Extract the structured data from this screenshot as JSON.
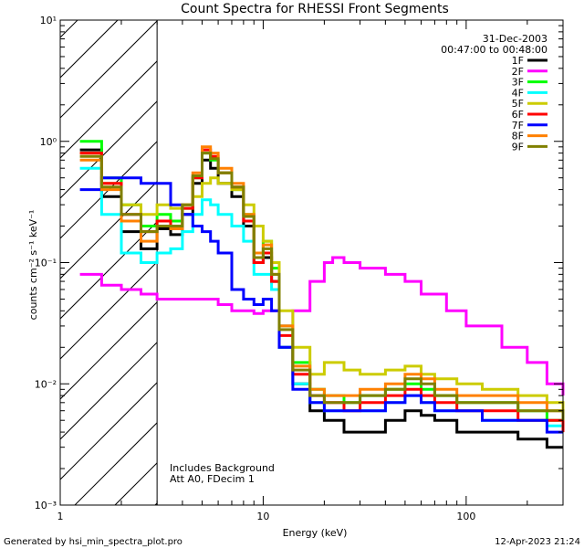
{
  "chart_data": {
    "type": "line",
    "title": "Count Spectra for RHESSI Front Segments",
    "date": "31-Dec-2003",
    "time_range": "00:47:00 to 00:48:00",
    "xlabel": "Energy (keV)",
    "ylabel": "counts cm⁻² s⁻¹ keV⁻¹",
    "xscale": "log",
    "yscale": "log",
    "xlim": [
      1,
      300
    ],
    "ylim": [
      0.001,
      10
    ],
    "x_ticks": [
      {
        "value": 1,
        "label": "1"
      },
      {
        "value": 10,
        "label": "10"
      },
      {
        "value": 100,
        "label": "100"
      }
    ],
    "y_ticks": [
      {
        "value": 0.001,
        "label": "10⁻³"
      },
      {
        "value": 0.01,
        "label": "10⁻²"
      },
      {
        "value": 0.1,
        "label": "10⁻¹"
      },
      {
        "value": 1,
        "label": "10⁰"
      },
      {
        "value": 10,
        "label": "10¹"
      }
    ],
    "excluded_region": {
      "from": 1,
      "to": 3,
      "style": "hatched"
    },
    "annotations": [
      "Includes Background",
      "Att A0, FDecim 1"
    ],
    "series": [
      {
        "name": "1F",
        "color": "#000000",
        "points": [
          [
            1.25,
            0.85
          ],
          [
            1.6,
            0.35
          ],
          [
            2.0,
            0.18
          ],
          [
            2.5,
            0.13
          ],
          [
            3.0,
            0.19
          ],
          [
            3.5,
            0.17
          ],
          [
            4.0,
            0.25
          ],
          [
            4.5,
            0.45
          ],
          [
            5.0,
            0.7
          ],
          [
            5.5,
            0.6
          ],
          [
            6.0,
            0.45
          ],
          [
            7.0,
            0.35
          ],
          [
            8.0,
            0.2
          ],
          [
            9.0,
            0.1
          ],
          [
            10.0,
            0.11
          ],
          [
            11.0,
            0.07
          ],
          [
            12.0,
            0.02
          ],
          [
            14.0,
            0.01
          ],
          [
            17.0,
            0.006
          ],
          [
            20.0,
            0.005
          ],
          [
            25.0,
            0.004
          ],
          [
            30.0,
            0.004
          ],
          [
            40.0,
            0.005
          ],
          [
            50.0,
            0.006
          ],
          [
            60.0,
            0.0055
          ],
          [
            70.0,
            0.005
          ],
          [
            90.0,
            0.004
          ],
          [
            120.0,
            0.004
          ],
          [
            180.0,
            0.0035
          ],
          [
            250.0,
            0.003
          ],
          [
            300.0,
            0.003
          ]
        ]
      },
      {
        "name": "2F",
        "color": "#ff00ff",
        "points": [
          [
            1.25,
            0.08
          ],
          [
            1.6,
            0.065
          ],
          [
            2.0,
            0.06
          ],
          [
            2.5,
            0.055
          ],
          [
            3.0,
            0.05
          ],
          [
            4.0,
            0.05
          ],
          [
            5.0,
            0.05
          ],
          [
            6.0,
            0.045
          ],
          [
            7.0,
            0.04
          ],
          [
            8.0,
            0.04
          ],
          [
            9.0,
            0.038
          ],
          [
            10.0,
            0.04
          ],
          [
            12.0,
            0.03
          ],
          [
            14.0,
            0.04
          ],
          [
            17.0,
            0.07
          ],
          [
            20.0,
            0.1
          ],
          [
            22.0,
            0.11
          ],
          [
            25.0,
            0.1
          ],
          [
            30.0,
            0.09
          ],
          [
            40.0,
            0.08
          ],
          [
            50.0,
            0.07
          ],
          [
            60.0,
            0.055
          ],
          [
            80.0,
            0.04
          ],
          [
            100.0,
            0.03
          ],
          [
            150.0,
            0.02
          ],
          [
            200.0,
            0.015
          ],
          [
            250.0,
            0.01
          ],
          [
            300.0,
            0.008
          ]
        ]
      },
      {
        "name": "3F",
        "color": "#00ff00",
        "points": [
          [
            1.25,
            1.0
          ],
          [
            1.6,
            0.5
          ],
          [
            2.0,
            0.3
          ],
          [
            2.5,
            0.2
          ],
          [
            3.0,
            0.25
          ],
          [
            3.5,
            0.22
          ],
          [
            4.0,
            0.28
          ],
          [
            4.5,
            0.5
          ],
          [
            5.0,
            0.8
          ],
          [
            5.5,
            0.7
          ],
          [
            6.0,
            0.55
          ],
          [
            7.0,
            0.4
          ],
          [
            8.0,
            0.25
          ],
          [
            9.0,
            0.12
          ],
          [
            10.0,
            0.15
          ],
          [
            11.0,
            0.09
          ],
          [
            12.0,
            0.03
          ],
          [
            14.0,
            0.015
          ],
          [
            17.0,
            0.009
          ],
          [
            20.0,
            0.008
          ],
          [
            25.0,
            0.007
          ],
          [
            30.0,
            0.008
          ],
          [
            40.0,
            0.009
          ],
          [
            50.0,
            0.01
          ],
          [
            60.0,
            0.009
          ],
          [
            70.0,
            0.008
          ],
          [
            90.0,
            0.007
          ],
          [
            120.0,
            0.007
          ],
          [
            180.0,
            0.006
          ],
          [
            250.0,
            0.005
          ],
          [
            300.0,
            0.005
          ]
        ]
      },
      {
        "name": "4F",
        "color": "#00ffff",
        "points": [
          [
            1.25,
            0.6
          ],
          [
            1.6,
            0.25
          ],
          [
            2.0,
            0.12
          ],
          [
            2.5,
            0.1
          ],
          [
            3.0,
            0.12
          ],
          [
            3.5,
            0.13
          ],
          [
            4.0,
            0.18
          ],
          [
            4.5,
            0.25
          ],
          [
            5.0,
            0.33
          ],
          [
            5.5,
            0.3
          ],
          [
            6.0,
            0.25
          ],
          [
            7.0,
            0.2
          ],
          [
            8.0,
            0.15
          ],
          [
            9.0,
            0.08
          ],
          [
            10.0,
            0.08
          ],
          [
            11.0,
            0.06
          ],
          [
            12.0,
            0.02
          ],
          [
            14.0,
            0.01
          ],
          [
            17.0,
            0.007
          ],
          [
            20.0,
            0.006
          ],
          [
            25.0,
            0.006
          ],
          [
            30.0,
            0.006
          ],
          [
            40.0,
            0.007
          ],
          [
            50.0,
            0.008
          ],
          [
            60.0,
            0.007
          ],
          [
            70.0,
            0.006
          ],
          [
            90.0,
            0.006
          ],
          [
            120.0,
            0.005
          ],
          [
            180.0,
            0.005
          ],
          [
            250.0,
            0.0045
          ],
          [
            300.0,
            0.004
          ]
        ]
      },
      {
        "name": "5F",
        "color": "#cccc00",
        "points": [
          [
            1.25,
            0.8
          ],
          [
            1.6,
            0.45
          ],
          [
            2.0,
            0.3
          ],
          [
            2.5,
            0.25
          ],
          [
            3.0,
            0.3
          ],
          [
            3.5,
            0.28
          ],
          [
            4.0,
            0.3
          ],
          [
            4.5,
            0.35
          ],
          [
            5.0,
            0.45
          ],
          [
            5.5,
            0.5
          ],
          [
            6.0,
            0.45
          ],
          [
            7.0,
            0.4
          ],
          [
            8.0,
            0.3
          ],
          [
            9.0,
            0.2
          ],
          [
            10.0,
            0.15
          ],
          [
            11.0,
            0.1
          ],
          [
            12.0,
            0.04
          ],
          [
            14.0,
            0.02
          ],
          [
            17.0,
            0.012
          ],
          [
            20.0,
            0.015
          ],
          [
            25.0,
            0.013
          ],
          [
            30.0,
            0.012
          ],
          [
            40.0,
            0.013
          ],
          [
            50.0,
            0.014
          ],
          [
            60.0,
            0.012
          ],
          [
            70.0,
            0.011
          ],
          [
            90.0,
            0.01
          ],
          [
            120.0,
            0.009
          ],
          [
            180.0,
            0.008
          ],
          [
            250.0,
            0.007
          ],
          [
            300.0,
            0.006
          ]
        ]
      },
      {
        "name": "6F",
        "color": "#ff0000",
        "points": [
          [
            1.25,
            0.8
          ],
          [
            1.6,
            0.45
          ],
          [
            2.0,
            0.25
          ],
          [
            2.5,
            0.18
          ],
          [
            3.0,
            0.22
          ],
          [
            3.5,
            0.2
          ],
          [
            4.0,
            0.28
          ],
          [
            4.5,
            0.5
          ],
          [
            5.0,
            0.85
          ],
          [
            5.5,
            0.75
          ],
          [
            6.0,
            0.55
          ],
          [
            7.0,
            0.42
          ],
          [
            8.0,
            0.22
          ],
          [
            9.0,
            0.1
          ],
          [
            10.0,
            0.12
          ],
          [
            11.0,
            0.07
          ],
          [
            12.0,
            0.025
          ],
          [
            14.0,
            0.012
          ],
          [
            17.0,
            0.008
          ],
          [
            20.0,
            0.007
          ],
          [
            25.0,
            0.006
          ],
          [
            30.0,
            0.007
          ],
          [
            40.0,
            0.008
          ],
          [
            50.0,
            0.009
          ],
          [
            60.0,
            0.008
          ],
          [
            70.0,
            0.007
          ],
          [
            90.0,
            0.006
          ],
          [
            120.0,
            0.006
          ],
          [
            180.0,
            0.005
          ],
          [
            250.0,
            0.005
          ],
          [
            300.0,
            0.004
          ]
        ]
      },
      {
        "name": "7F",
        "color": "#0000ff",
        "points": [
          [
            1.25,
            0.4
          ],
          [
            1.6,
            0.5
          ],
          [
            2.0,
            0.5
          ],
          [
            2.5,
            0.45
          ],
          [
            3.0,
            0.45
          ],
          [
            3.5,
            0.3
          ],
          [
            4.0,
            0.25
          ],
          [
            4.5,
            0.2
          ],
          [
            5.0,
            0.18
          ],
          [
            5.5,
            0.15
          ],
          [
            6.0,
            0.12
          ],
          [
            7.0,
            0.06
          ],
          [
            8.0,
            0.05
          ],
          [
            9.0,
            0.045
          ],
          [
            10.0,
            0.05
          ],
          [
            11.0,
            0.04
          ],
          [
            12.0,
            0.02
          ],
          [
            14.0,
            0.009
          ],
          [
            17.0,
            0.007
          ],
          [
            20.0,
            0.006
          ],
          [
            25.0,
            0.006
          ],
          [
            30.0,
            0.006
          ],
          [
            40.0,
            0.007
          ],
          [
            50.0,
            0.008
          ],
          [
            60.0,
            0.007
          ],
          [
            70.0,
            0.006
          ],
          [
            90.0,
            0.006
          ],
          [
            120.0,
            0.005
          ],
          [
            180.0,
            0.005
          ],
          [
            250.0,
            0.004
          ],
          [
            300.0,
            0.004
          ]
        ]
      },
      {
        "name": "8F",
        "color": "#ff8000",
        "points": [
          [
            1.25,
            0.7
          ],
          [
            1.6,
            0.4
          ],
          [
            2.0,
            0.22
          ],
          [
            2.5,
            0.15
          ],
          [
            3.0,
            0.2
          ],
          [
            3.5,
            0.19
          ],
          [
            4.0,
            0.3
          ],
          [
            4.5,
            0.55
          ],
          [
            5.0,
            0.9
          ],
          [
            5.5,
            0.8
          ],
          [
            6.0,
            0.6
          ],
          [
            7.0,
            0.45
          ],
          [
            8.0,
            0.25
          ],
          [
            9.0,
            0.12
          ],
          [
            10.0,
            0.14
          ],
          [
            11.0,
            0.08
          ],
          [
            12.0,
            0.03
          ],
          [
            14.0,
            0.014
          ],
          [
            17.0,
            0.009
          ],
          [
            20.0,
            0.008
          ],
          [
            25.0,
            0.008
          ],
          [
            30.0,
            0.009
          ],
          [
            40.0,
            0.01
          ],
          [
            50.0,
            0.012
          ],
          [
            60.0,
            0.011
          ],
          [
            70.0,
            0.009
          ],
          [
            90.0,
            0.008
          ],
          [
            120.0,
            0.008
          ],
          [
            180.0,
            0.007
          ],
          [
            250.0,
            0.006
          ],
          [
            300.0,
            0.005
          ]
        ]
      },
      {
        "name": "9F",
        "color": "#808000",
        "points": [
          [
            1.25,
            0.75
          ],
          [
            1.6,
            0.42
          ],
          [
            2.0,
            0.25
          ],
          [
            2.5,
            0.18
          ],
          [
            3.0,
            0.2
          ],
          [
            3.5,
            0.2
          ],
          [
            4.0,
            0.3
          ],
          [
            4.5,
            0.52
          ],
          [
            5.0,
            0.8
          ],
          [
            5.5,
            0.72
          ],
          [
            6.0,
            0.55
          ],
          [
            7.0,
            0.42
          ],
          [
            8.0,
            0.24
          ],
          [
            9.0,
            0.11
          ],
          [
            10.0,
            0.13
          ],
          [
            11.0,
            0.08
          ],
          [
            12.0,
            0.028
          ],
          [
            14.0,
            0.013
          ],
          [
            17.0,
            0.008
          ],
          [
            20.0,
            0.007
          ],
          [
            25.0,
            0.007
          ],
          [
            30.0,
            0.008
          ],
          [
            40.0,
            0.009
          ],
          [
            50.0,
            0.011
          ],
          [
            60.0,
            0.01
          ],
          [
            70.0,
            0.008
          ],
          [
            90.0,
            0.007
          ],
          [
            120.0,
            0.007
          ],
          [
            180.0,
            0.006
          ],
          [
            250.0,
            0.006
          ],
          [
            300.0,
            0.005
          ]
        ]
      }
    ]
  },
  "footer": {
    "generated_by": "Generated by hsi_min_spectra_plot.pro",
    "timestamp": "12-Apr-2023 21:24"
  }
}
